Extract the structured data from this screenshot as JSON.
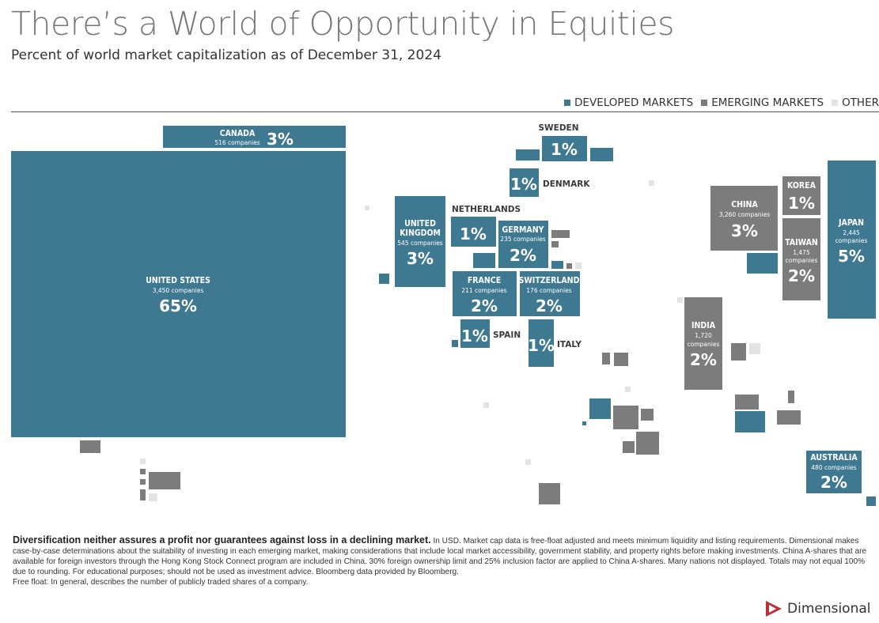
{
  "title": "There’s a World of Opportunity in Equities",
  "subtitle": "Percent of world market capitalization as of December 31, 2024",
  "colors": {
    "developed": "#3f7891",
    "emerging": "#7c7c7c",
    "other": "#e3e3e3",
    "brand_red": "#b7313a"
  },
  "legend": [
    {
      "label": "DEVELOPED MARKETS",
      "color": "#3f7891"
    },
    {
      "label": "EMERGING MARKETS",
      "color": "#7c7c7c"
    },
    {
      "label": "OTHER",
      "color": "#e3e3e3"
    }
  ],
  "chart_data": {
    "type": "treemap",
    "unit": "Percent of world market capitalization",
    "as_of": "December 31, 2024",
    "countries": [
      {
        "name": "UNITED STATES",
        "companies": "3,450 companies",
        "percent": 65,
        "market": "developed"
      },
      {
        "name": "CANADA",
        "companies": "516 companies",
        "percent": 3,
        "market": "developed"
      },
      {
        "name": "UNITED KINGDOM",
        "companies": "545 companies",
        "percent": 3,
        "market": "developed"
      },
      {
        "name": "SWEDEN",
        "percent": 1,
        "market": "developed"
      },
      {
        "name": "DENMARK",
        "percent": 1,
        "market": "developed"
      },
      {
        "name": "NETHERLANDS",
        "percent": 1,
        "market": "developed"
      },
      {
        "name": "GERMANY",
        "companies": "235 companies",
        "percent": 2,
        "market": "developed"
      },
      {
        "name": "FRANCE",
        "companies": "211 companies",
        "percent": 2,
        "market": "developed"
      },
      {
        "name": "SWITZERLAND",
        "companies": "176 companies",
        "percent": 2,
        "market": "developed"
      },
      {
        "name": "SPAIN",
        "percent": 1,
        "market": "developed"
      },
      {
        "name": "ITALY",
        "percent": 1,
        "market": "developed"
      },
      {
        "name": "CHINA",
        "companies": "3,260 companies",
        "percent": 3,
        "market": "emerging"
      },
      {
        "name": "KOREA",
        "percent": 1,
        "market": "emerging"
      },
      {
        "name": "TAIWAN",
        "companies": "1,475 companies",
        "percent": 2,
        "market": "emerging"
      },
      {
        "name": "JAPAN",
        "companies": "2,445 companies",
        "percent": 5,
        "market": "developed"
      },
      {
        "name": "INDIA",
        "companies": "1,720 companies",
        "percent": 2,
        "market": "emerging"
      },
      {
        "name": "AUSTRALIA",
        "companies": "480 companies",
        "percent": 2,
        "market": "developed"
      }
    ]
  },
  "footer": {
    "lead": "Diversification neither assures a profit nor guarantees against loss in a declining market.",
    "body": " In USD. Market cap data is free-float adjusted and meets minimum liquidity and listing requirements. Dimensional makes case-by-case determinations about the suitability of investing in each emerging market, making considerations that include local market accessibility, government stability, and property rights before making investments. China A-shares that are available for foreign investors through the Hong Kong Stock Connect program are included in China. 30% foreign ownership limit and 25% inclusion factor are applied to China A-shares. Many nations not displayed. Totals may not equal 100% due to rounding. For educational purposes; should not be used as investment advice. Bloomberg data provided by Bloomberg.",
    "free_float": "Free float: In general, describes the number of publicly traded shares of a company."
  },
  "brand": {
    "name": "Dimensional",
    "logo_icon": "dimensional-logo-icon"
  }
}
